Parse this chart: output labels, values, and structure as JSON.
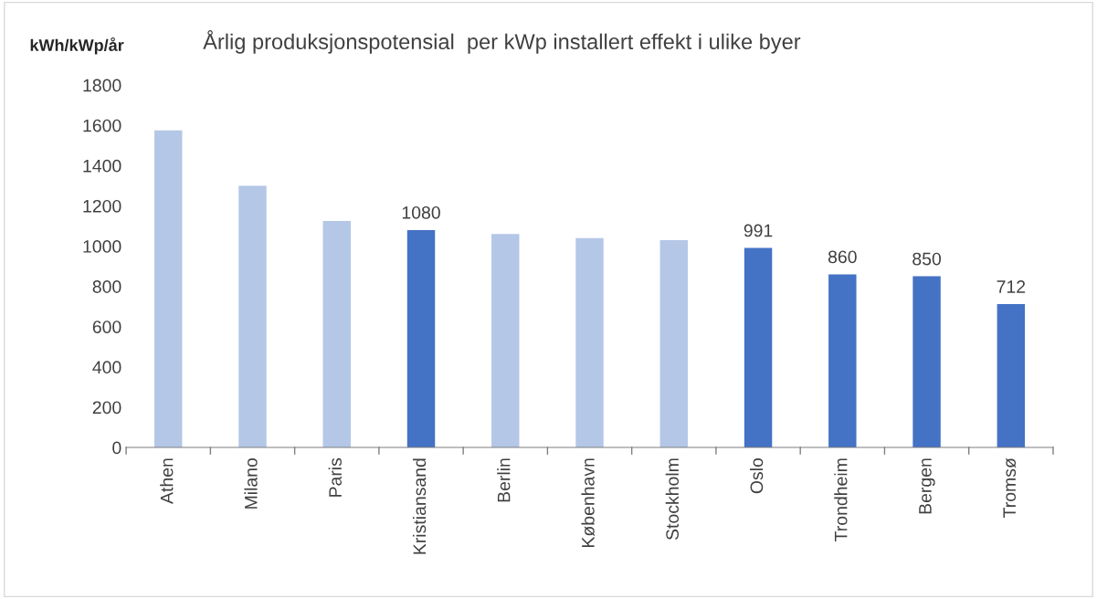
{
  "chart_data": {
    "type": "bar",
    "title": "Årlig produksjonspotensial  per kWp installert effekt i ulike byer",
    "ylabel": "kWh/kWp/år",
    "categories": [
      "Athen",
      "Milano",
      "Paris",
      "Kristiansand",
      "Berlin",
      "København",
      "Stockholm",
      "Oslo",
      "Trondheim",
      "Bergen",
      "Tromsø"
    ],
    "values": [
      1575,
      1300,
      1125,
      1080,
      1060,
      1040,
      1030,
      991,
      860,
      850,
      712
    ],
    "colors": [
      "#b4c7e7",
      "#b4c7e7",
      "#b4c7e7",
      "#4472c4",
      "#b4c7e7",
      "#b4c7e7",
      "#b4c7e7",
      "#4472c4",
      "#4472c4",
      "#4472c4",
      "#4472c4"
    ],
    "value_labels": [
      null,
      null,
      null,
      "1080",
      null,
      null,
      null,
      "991",
      "860",
      "850",
      "712"
    ],
    "ylim": [
      0,
      1800
    ],
    "yticks": [
      0,
      200,
      400,
      600,
      800,
      1000,
      1200,
      1400,
      1600,
      1800
    ],
    "grid": false,
    "legend": false
  }
}
